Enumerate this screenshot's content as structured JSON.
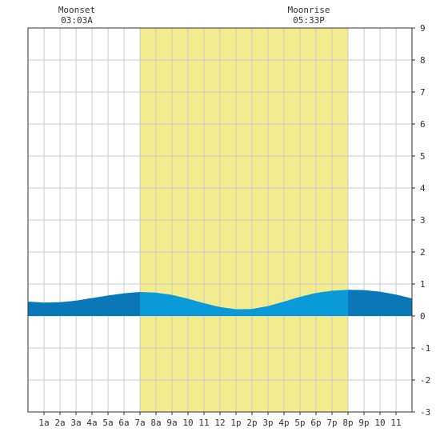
{
  "chart_data": {
    "type": "area",
    "title": "",
    "xlabel": "",
    "ylabel": "",
    "x_range_hours": [
      0,
      24
    ],
    "ylim": [
      -3,
      9
    ],
    "y_ticks": [
      -3,
      -2,
      -1,
      0,
      1,
      2,
      3,
      4,
      5,
      6,
      7,
      8,
      9
    ],
    "x_tick_labels": [
      "1a",
      "2a",
      "3a",
      "4a",
      "5a",
      "6a",
      "7a",
      "8a",
      "9a",
      "10",
      "11",
      "12",
      "1p",
      "2p",
      "3p",
      "4p",
      "5p",
      "6p",
      "7p",
      "8p",
      "9p",
      "10",
      "11"
    ],
    "daylight": {
      "start_hour": 7.0,
      "end_hour": 20.0,
      "color": "#f2ec8e"
    },
    "annotations": [
      {
        "name": "Moonset",
        "time": "03:03A",
        "hour": 3.05
      },
      {
        "name": "Moonrise",
        "time": "05:33P",
        "hour": 17.55
      }
    ],
    "grid": true,
    "colors": {
      "fill_light": "#0a9ad9",
      "fill_dark": "#0a78b8",
      "grid": "#c8c8c8",
      "axis": "#333333"
    },
    "series": [
      {
        "x": [
          0,
          1,
          2,
          3,
          4,
          5,
          6,
          7,
          8,
          9,
          10,
          11,
          12,
          13,
          14,
          15,
          16,
          17,
          18,
          19,
          20,
          21,
          22,
          23,
          24
        ],
        "values": [
          0.45,
          0.42,
          0.43,
          0.48,
          0.56,
          0.64,
          0.71,
          0.75,
          0.73,
          0.66,
          0.54,
          0.4,
          0.28,
          0.21,
          0.22,
          0.31,
          0.45,
          0.6,
          0.72,
          0.79,
          0.82,
          0.81,
          0.76,
          0.67,
          0.55
        ]
      }
    ]
  }
}
